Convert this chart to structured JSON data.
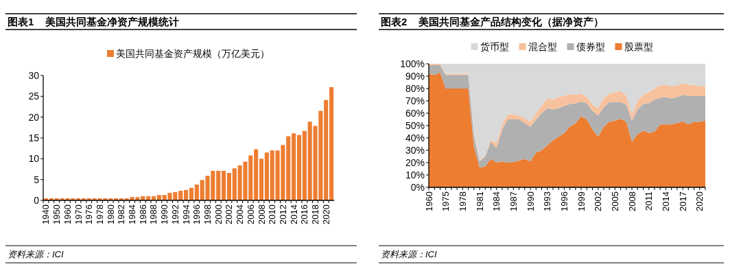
{
  "chart_data": [
    {
      "type": "bar",
      "title": "图表1    美国共同基金净资产规模统计",
      "legend": "top",
      "ylim": [
        0,
        30
      ],
      "yticks": [
        0,
        5,
        10,
        15,
        20,
        25,
        30
      ],
      "annotations": [
        "资料来源：ICI"
      ],
      "categories": [
        "1940",
        null,
        "1950",
        null,
        "1960",
        null,
        "1970",
        null,
        "1976",
        null,
        "1978",
        null,
        "1980",
        null,
        "1982",
        null,
        "1984",
        null,
        "1986",
        null,
        "1988",
        null,
        "1990",
        null,
        "1992",
        null,
        "1994",
        null,
        "1996",
        null,
        "1998",
        null,
        "2000",
        null,
        "2002",
        null,
        "2004",
        null,
        "2006",
        null,
        "2008",
        null,
        "2010",
        null,
        "2012",
        null,
        "2014",
        null,
        "2016",
        null,
        "2018",
        null,
        "2020",
        null
      ],
      "series": [
        {
          "name": "美国共同基金资产规模（万亿美元）",
          "color": "#ed7d31",
          "values": [
            0.5,
            0.5,
            0.5,
            0.5,
            0.5,
            0.5,
            0.5,
            0.5,
            0.5,
            0.5,
            0.5,
            0.5,
            0.5,
            0.5,
            0.5,
            0.5,
            0.8,
            0.8,
            1.0,
            1.0,
            1.0,
            1.3,
            1.3,
            1.8,
            2.0,
            2.3,
            2.5,
            3.0,
            3.8,
            4.9,
            5.9,
            7.1,
            7.1,
            7.1,
            6.6,
            7.7,
            8.4,
            9.3,
            10.8,
            12.3,
            10.0,
            11.5,
            12.0,
            12.0,
            13.3,
            15.4,
            16.1,
            15.7,
            16.7,
            18.9,
            17.9,
            21.5,
            24.1,
            27.2
          ]
        }
      ]
    },
    {
      "type": "area",
      "stacked": true,
      "title": "图表2    美国共同基金产品结构变化（据净资产）",
      "legend": "top",
      "ylim": [
        0,
        100
      ],
      "yticks": [
        {
          "value": 0,
          "label": "0%"
        },
        {
          "value": 10,
          "label": "10%"
        },
        {
          "value": 20,
          "label": "20%"
        },
        {
          "value": 30,
          "label": "30%"
        },
        {
          "value": 40,
          "label": "40%"
        },
        {
          "value": 50,
          "label": "50%"
        },
        {
          "value": 60,
          "label": "60%"
        },
        {
          "value": 70,
          "label": "70%"
        },
        {
          "value": 80,
          "label": "80%"
        },
        {
          "value": 90,
          "label": "90%"
        },
        {
          "value": 100,
          "label": "100%"
        }
      ],
      "annotations": [
        "资料来源：ICI"
      ],
      "categories": [
        "1960",
        null,
        null,
        "1975",
        null,
        null,
        "1978",
        null,
        null,
        "1981",
        null,
        null,
        "1984",
        null,
        null,
        "1987",
        null,
        null,
        "1990",
        null,
        null,
        "1993",
        null,
        null,
        "1996",
        null,
        null,
        "1999",
        null,
        null,
        "2002",
        null,
        null,
        "2005",
        null,
        null,
        "2008",
        null,
        null,
        "2011",
        null,
        null,
        "2014",
        null,
        null,
        "2017",
        null,
        null,
        "2020",
        null
      ],
      "series": [
        {
          "name": "股票型",
          "color": "#ed7d31",
          "values": [
            92,
            91,
            93,
            80,
            80,
            80,
            80,
            80,
            33,
            16,
            17,
            23,
            20,
            21,
            20,
            20.5,
            21.5,
            23,
            21,
            28,
            30,
            34,
            38,
            41,
            44,
            49,
            52,
            57.5,
            55,
            47,
            41,
            49,
            53,
            54,
            55.5,
            53,
            37,
            43,
            46,
            44,
            45,
            51,
            51,
            51,
            52,
            53.5,
            51,
            53,
            53,
            54
          ]
        },
        {
          "name": "债券型",
          "color": "#b0b0b0",
          "values": [
            7,
            8,
            6,
            11,
            11,
            11,
            11,
            11,
            9,
            5,
            8,
            14,
            12,
            26,
            35,
            34.5,
            33.5,
            29,
            28,
            27,
            30,
            30,
            25,
            23,
            22,
            18.5,
            16,
            12,
            13,
            15,
            17,
            16,
            16,
            15,
            13.5,
            14,
            17,
            20,
            21.5,
            24,
            26,
            21.5,
            22,
            21,
            21,
            21.5,
            23,
            21,
            21,
            20
          ]
        },
        {
          "name": "混合型",
          "color": "#f8c19d",
          "values": [
            1,
            1,
            1,
            1,
            1,
            1,
            1,
            1,
            2,
            1,
            1,
            1.5,
            4,
            4,
            4,
            4,
            3,
            4,
            4,
            5,
            6,
            8,
            8,
            9,
            8,
            8,
            7,
            6.5,
            5,
            5,
            6,
            7,
            7,
            8,
            9,
            7,
            5,
            7,
            7.5,
            9,
            9,
            10,
            10,
            10,
            9.5,
            9.5,
            9,
            9,
            8,
            8
          ]
        },
        {
          "name": "货币型",
          "color": "#d9d9d9",
          "values": [
            0,
            0,
            0,
            8,
            8,
            8,
            8,
            8,
            56,
            78,
            74,
            61.5,
            64,
            49,
            41,
            41,
            42,
            44,
            47,
            40,
            34,
            28,
            29,
            27,
            26,
            24.5,
            25,
            24,
            27,
            33,
            36,
            28,
            24,
            23,
            22,
            26,
            41,
            30,
            25,
            23,
            20,
            17.5,
            17,
            18,
            17.5,
            15.5,
            17,
            17,
            18,
            18
          ]
        }
      ]
    }
  ]
}
